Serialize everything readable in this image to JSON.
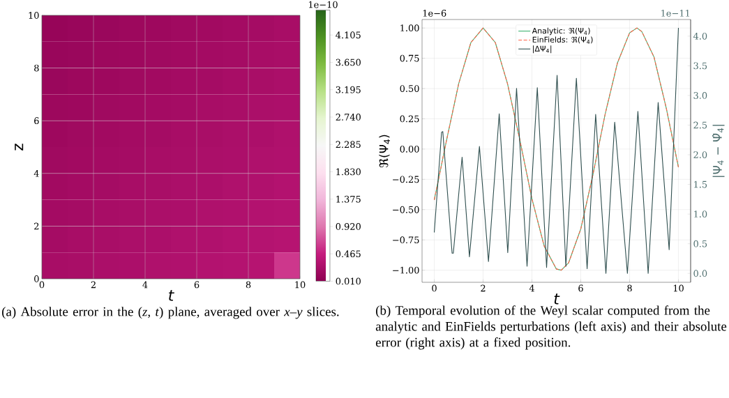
{
  "chart_data": [
    {
      "type": "heatmap",
      "xlabel": "t",
      "ylabel": "z",
      "clabel": "1e−10",
      "xlim": [
        0,
        10
      ],
      "ylim": [
        0,
        10
      ],
      "xticks": [
        0,
        2,
        4,
        6,
        8,
        10
      ],
      "yticks": [
        0,
        2,
        4,
        6,
        8,
        10
      ],
      "grid": true,
      "cells": [
        [
          0.08,
          0.1,
          0.11,
          0.13,
          0.14,
          0.16,
          0.17,
          0.19,
          0.2,
          0.22
        ],
        [
          0.1,
          0.11,
          0.13,
          0.14,
          0.16,
          0.17,
          0.19,
          0.2,
          0.22,
          0.23
        ],
        [
          0.11,
          0.13,
          0.14,
          0.16,
          0.17,
          0.19,
          0.2,
          0.22,
          0.23,
          0.25
        ],
        [
          0.13,
          0.14,
          0.16,
          0.17,
          0.19,
          0.2,
          0.22,
          0.23,
          0.25,
          0.26
        ],
        [
          0.14,
          0.16,
          0.17,
          0.19,
          0.2,
          0.22,
          0.23,
          0.25,
          0.26,
          0.28
        ],
        [
          0.16,
          0.17,
          0.19,
          0.2,
          0.22,
          0.23,
          0.25,
          0.26,
          0.28,
          0.29
        ],
        [
          0.17,
          0.19,
          0.2,
          0.22,
          0.23,
          0.25,
          0.26,
          0.28,
          0.29,
          0.31
        ],
        [
          0.19,
          0.2,
          0.22,
          0.23,
          0.25,
          0.26,
          0.28,
          0.29,
          0.31,
          0.32
        ],
        [
          0.2,
          0.22,
          0.23,
          0.25,
          0.26,
          0.28,
          0.29,
          0.31,
          0.32,
          0.34
        ],
        [
          0.22,
          0.23,
          0.25,
          0.26,
          0.28,
          0.29,
          0.31,
          0.32,
          0.34,
          0.6
        ]
      ],
      "clim": [
        0.01,
        4.52
      ],
      "cticks": [
        {
          "value": 0.01,
          "label": "0.010"
        },
        {
          "value": 0.465,
          "label": "0.465"
        },
        {
          "value": 0.92,
          "label": "0.920"
        },
        {
          "value": 1.375,
          "label": "1.375"
        },
        {
          "value": 1.83,
          "label": "1.830"
        },
        {
          "value": 2.285,
          "label": "2.285"
        },
        {
          "value": 2.74,
          "label": "2.740"
        },
        {
          "value": 3.195,
          "label": "3.195"
        },
        {
          "value": 3.65,
          "label": "3.650"
        },
        {
          "value": 4.105,
          "label": "4.105"
        }
      ],
      "annotations": [
        "(a) Absolute error in the (*z*, *t*) plane, averaged over *x*–*y* slices."
      ]
    },
    {
      "type": "line",
      "xlabel": "t",
      "ylabel": "ℜ(Ψ$_{4}$)",
      "y2label": "|Ψ$_{4}$ − Ψ̂$_{4}$|",
      "xlim": [
        -0.5,
        10.5
      ],
      "ylim": [
        -1.1,
        1.07
      ],
      "y2lim": [
        -0.15,
        4.28
      ],
      "xticks": [
        0,
        2,
        4,
        6,
        8,
        10
      ],
      "yticks": [
        {
          "value": -1,
          "label": "−1.00"
        },
        {
          "value": -0.75,
          "label": "−0.75"
        },
        {
          "value": -0.5,
          "label": "−0.50"
        },
        {
          "value": -0.25,
          "label": "−0.25"
        },
        {
          "value": 0,
          "label": "0.00"
        },
        {
          "value": 0.25,
          "label": "0.25"
        },
        {
          "value": 0.5,
          "label": "0.50"
        },
        {
          "value": 0.75,
          "label": "0.75"
        },
        {
          "value": 1,
          "label": "1.00"
        }
      ],
      "y2ticks": [
        {
          "value": 0,
          "label": "0.0"
        },
        0.5,
        {
          "value": 1,
          "label": "1.0"
        },
        1.5,
        {
          "value": 2,
          "label": "2.0"
        },
        2.5,
        {
          "value": 3,
          "label": "3.0"
        },
        3.5,
        {
          "value": 4,
          "label": "4.0"
        }
      ],
      "grid": true,
      "legend": "top",
      "series": [
        {
          "name": "Analytic: ℜ(Ψ$_{4}$)",
          "color": "#3cb371",
          "line_style": "solid",
          "x": [
            0,
            0.5,
            1,
            1.5,
            2,
            2.5,
            3,
            3.5,
            4,
            4.5,
            5,
            5.2,
            5.5,
            6,
            6.5,
            7,
            7.5,
            8,
            8.3,
            8.5,
            9,
            9.5,
            10
          ],
          "values": [
            -0.42,
            0.07,
            0.54,
            0.88,
            1.0,
            0.88,
            0.54,
            0.08,
            -0.41,
            -0.8,
            -0.99,
            -1.0,
            -0.94,
            -0.66,
            -0.21,
            0.29,
            0.71,
            0.96,
            1.0,
            0.97,
            0.76,
            0.34,
            -0.15
          ]
        },
        {
          "name": "EinFields: ℜ(Ψ$_{4}$)",
          "color": "#ff6347",
          "line_style": "dashed",
          "x": [
            0,
            0.5,
            1,
            1.5,
            2,
            2.5,
            3,
            3.5,
            4,
            4.5,
            5,
            5.2,
            5.5,
            6,
            6.5,
            7,
            7.5,
            8,
            8.3,
            8.5,
            9,
            9.5,
            10
          ],
          "values": [
            -0.42,
            0.07,
            0.54,
            0.88,
            1.0,
            0.88,
            0.54,
            0.08,
            -0.41,
            -0.8,
            -0.99,
            -1.0,
            -0.94,
            -0.66,
            -0.21,
            0.29,
            0.71,
            0.96,
            1.0,
            0.97,
            0.76,
            0.34,
            -0.15
          ]
        },
        {
          "name": "|ΔΨ$_{4}$|",
          "color": "#2f4f4f",
          "line_style": "solid",
          "axis": "y2",
          "x": [
            0,
            0.3,
            0.35,
            0.73,
            0.78,
            1.14,
            1.44,
            1.85,
            2.22,
            2.66,
            3.01,
            3.37,
            3.8,
            4.22,
            4.6,
            5.03,
            5.39,
            5.82,
            6.26,
            6.61,
            7.03,
            7.39,
            7.91,
            8.34,
            8.76,
            9.17,
            9.62,
            10
          ],
          "values": [
            0.69,
            2.38,
            2.39,
            0.34,
            0.34,
            1.96,
            0.28,
            2.14,
            0.2,
            2.69,
            0.35,
            3.12,
            0.12,
            3.13,
            0.1,
            3.34,
            0.12,
            3.29,
            0.08,
            2.68,
            0.0,
            2.55,
            0.0,
            2.73,
            0.0,
            2.88,
            0.4,
            4.14
          ]
        }
      ],
      "annotations": [
        "(b) Temporal evolution of the Weyl scalar computed from the analytic and EinFields perturbations (left axis) and their absolute error (right axis) at a fixed position.",
        "1e−6",
        "1e−11"
      ]
    }
  ]
}
